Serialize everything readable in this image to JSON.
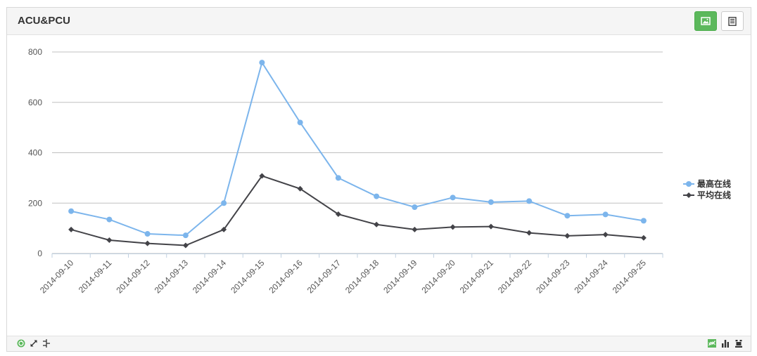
{
  "panel": {
    "title": "ACU&PCU"
  },
  "header_buttons": [
    {
      "icon": "image-icon",
      "active": true
    },
    {
      "icon": "list-icon",
      "active": false
    }
  ],
  "footer": {
    "left_icons": [
      "refresh-icon",
      "expand-icon",
      "tree-icon"
    ],
    "right_icons": [
      "line-chart-icon",
      "bar-chart-icon",
      "stack-icon"
    ]
  },
  "colors": {
    "series_max": "#7cb5ec",
    "series_avg": "#434348",
    "active_button": "#5cb85c"
  },
  "chart_data": {
    "type": "line",
    "categories": [
      "2014-09-10",
      "2014-09-11",
      "2014-09-12",
      "2014-09-13",
      "2014-09-14",
      "2014-09-15",
      "2014-09-16",
      "2014-09-17",
      "2014-09-18",
      "2014-09-19",
      "2014-09-20",
      "2014-09-21",
      "2014-09-22",
      "2014-09-23",
      "2014-09-24",
      "2014-09-25"
    ],
    "series": [
      {
        "name": "最高在线",
        "color": "#7cb5ec",
        "marker": "circle",
        "values": [
          168,
          135,
          78,
          72,
          200,
          758,
          520,
          300,
          227,
          184,
          222,
          204,
          208,
          150,
          155,
          130
        ]
      },
      {
        "name": "平均在线",
        "color": "#434348",
        "marker": "diamond",
        "values": [
          95,
          53,
          40,
          32,
          95,
          308,
          257,
          156,
          115,
          95,
          105,
          107,
          82,
          70,
          75,
          62
        ]
      }
    ],
    "yticks": [
      0,
      200,
      400,
      600,
      800
    ],
    "ylim": [
      0,
      800
    ],
    "grid": true,
    "legend": "right"
  }
}
